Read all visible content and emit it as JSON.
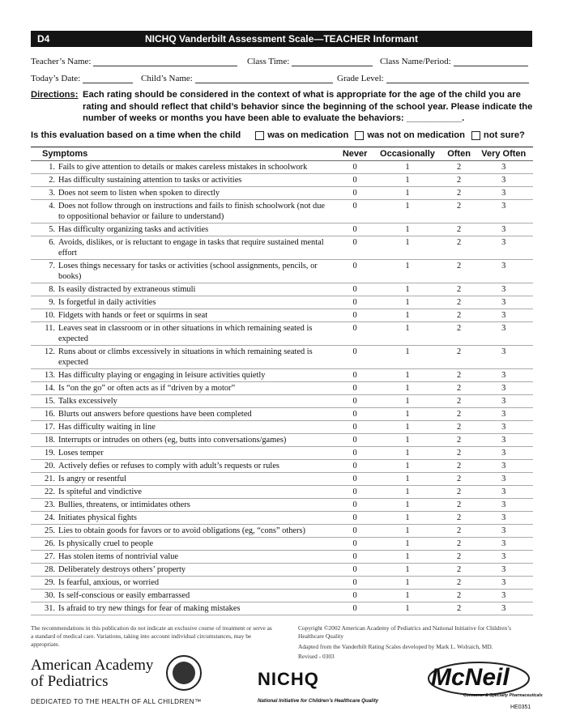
{
  "header": {
    "code": "D4",
    "title": "NICHQ Vanderbilt Assessment Scale—TEACHER Informant"
  },
  "fields": {
    "teacher_name": "Teacher’s Name:",
    "class_time": "Class Time:",
    "class_name": "Class Name/Period:",
    "todays_date": "Today’s Date:",
    "child_name": "Child’s Name:",
    "grade_level": "Grade Level:"
  },
  "directions": {
    "label": "Directions:",
    "text": "Each rating should be considered in the context of what is appropriate for the age of the child you are rating and should reflect that child’s behavior since the beginning of the school year. Please indicate the number of weeks or months you have been able to evaluate the behaviors: ___________."
  },
  "medication_question": {
    "text": "Is this evaluation based on a time when the child",
    "options": [
      "was on medication",
      "was not on medication",
      "not sure?"
    ]
  },
  "table": {
    "columns": [
      "Symptoms",
      "Never",
      "Occasionally",
      "Often",
      "Very Often"
    ],
    "scale": [
      0,
      1,
      2,
      3
    ],
    "rows": [
      {
        "number": "1.",
        "text": "Fails to give attention to details or makes careless mistakes in schoolwork"
      },
      {
        "number": "2.",
        "text": "Has difficulty sustaining attention to tasks or activities"
      },
      {
        "number": "3.",
        "text": "Does not seem to listen when spoken to directly"
      },
      {
        "number": "4.",
        "text": "Does not follow through on instructions and fails to finish schoolwork (not due to oppositional behavior or failure to understand)"
      },
      {
        "number": "5.",
        "text": "Has difficulty organizing tasks and activities"
      },
      {
        "number": "6.",
        "text": "Avoids, dislikes, or is reluctant to engage in tasks that require sustained mental effort"
      },
      {
        "number": "7.",
        "text": "Loses things necessary for tasks or activities (school assignments, pencils, or books)"
      },
      {
        "number": "8.",
        "text": "Is easily distracted by extraneous stimuli"
      },
      {
        "number": "9.",
        "text": "Is forgetful in daily activities"
      },
      {
        "number": "10.",
        "text": "Fidgets with hands or feet or squirms in seat"
      },
      {
        "number": "11.",
        "text": "Leaves seat in classroom or in other situations in which remaining seated is expected"
      },
      {
        "number": "12.",
        "text": "Runs about or climbs excessively in situations in which remaining seated is expected"
      },
      {
        "number": "13.",
        "text": "Has difficulty playing or engaging in leisure activities quietly"
      },
      {
        "number": "14.",
        "text": "Is “on the go” or often acts as if “driven by a motor”"
      },
      {
        "number": "15.",
        "text": "Talks excessively"
      },
      {
        "number": "16.",
        "text": "Blurts out answers before questions have been completed"
      },
      {
        "number": "17.",
        "text": "Has difficulty waiting in line"
      },
      {
        "number": "18.",
        "text": "Interrupts or intrudes on others (eg, butts into conversations/games)"
      },
      {
        "number": "19.",
        "text": "Loses temper"
      },
      {
        "number": "20.",
        "text": "Actively defies or refuses to comply with adult’s requests or rules"
      },
      {
        "number": "21.",
        "text": "Is angry or resentful"
      },
      {
        "number": "22.",
        "text": "Is spiteful and vindictive"
      },
      {
        "number": "23.",
        "text": "Bullies, threatens, or intimidates others"
      },
      {
        "number": "24.",
        "text": "Initiates physical fights"
      },
      {
        "number": "25.",
        "text": "Lies to obtain goods for favors or to avoid obligations (eg, “cons” others)"
      },
      {
        "number": "26.",
        "text": "Is physically cruel to people"
      },
      {
        "number": "27.",
        "text": "Has stolen items of nontrivial value"
      },
      {
        "number": "28.",
        "text": "Deliberately destroys others’ property"
      },
      {
        "number": "29.",
        "text": "Is fearful, anxious, or worried"
      },
      {
        "number": "30.",
        "text": "Is self-conscious or easily embarrassed"
      },
      {
        "number": "31.",
        "text": "Is afraid to try new things for fear of making mistakes"
      }
    ]
  },
  "footer": {
    "disclaimer": "The recommendations in this publication do not indicate an exclusive course of treatment or serve as a standard of medical care. Variations, taking into account individual circumstances, may be appropriate.",
    "copyright": "Copyright ©2002 American Academy of Pediatrics and National Initiative for Children’s Healthcare Quality",
    "adapted": "Adapted from the Vanderbilt Rating Scales developed by Mark L. Wolraich, MD.",
    "revised": "Revised - 0303",
    "aap_name": [
      "American Academy",
      "of Pediatrics"
    ],
    "aap_tagline": "DEDICATED TO THE HEALTH OF ALL CHILDREN™",
    "nichq_name": "NICHQ",
    "nichq_full": "National Initiative for Children’s Healthcare Quality",
    "mcneil_name": "McNeil",
    "mcneil_sub": "Consumer & Specialty Pharmaceuticals",
    "form_code": "HE0351"
  }
}
